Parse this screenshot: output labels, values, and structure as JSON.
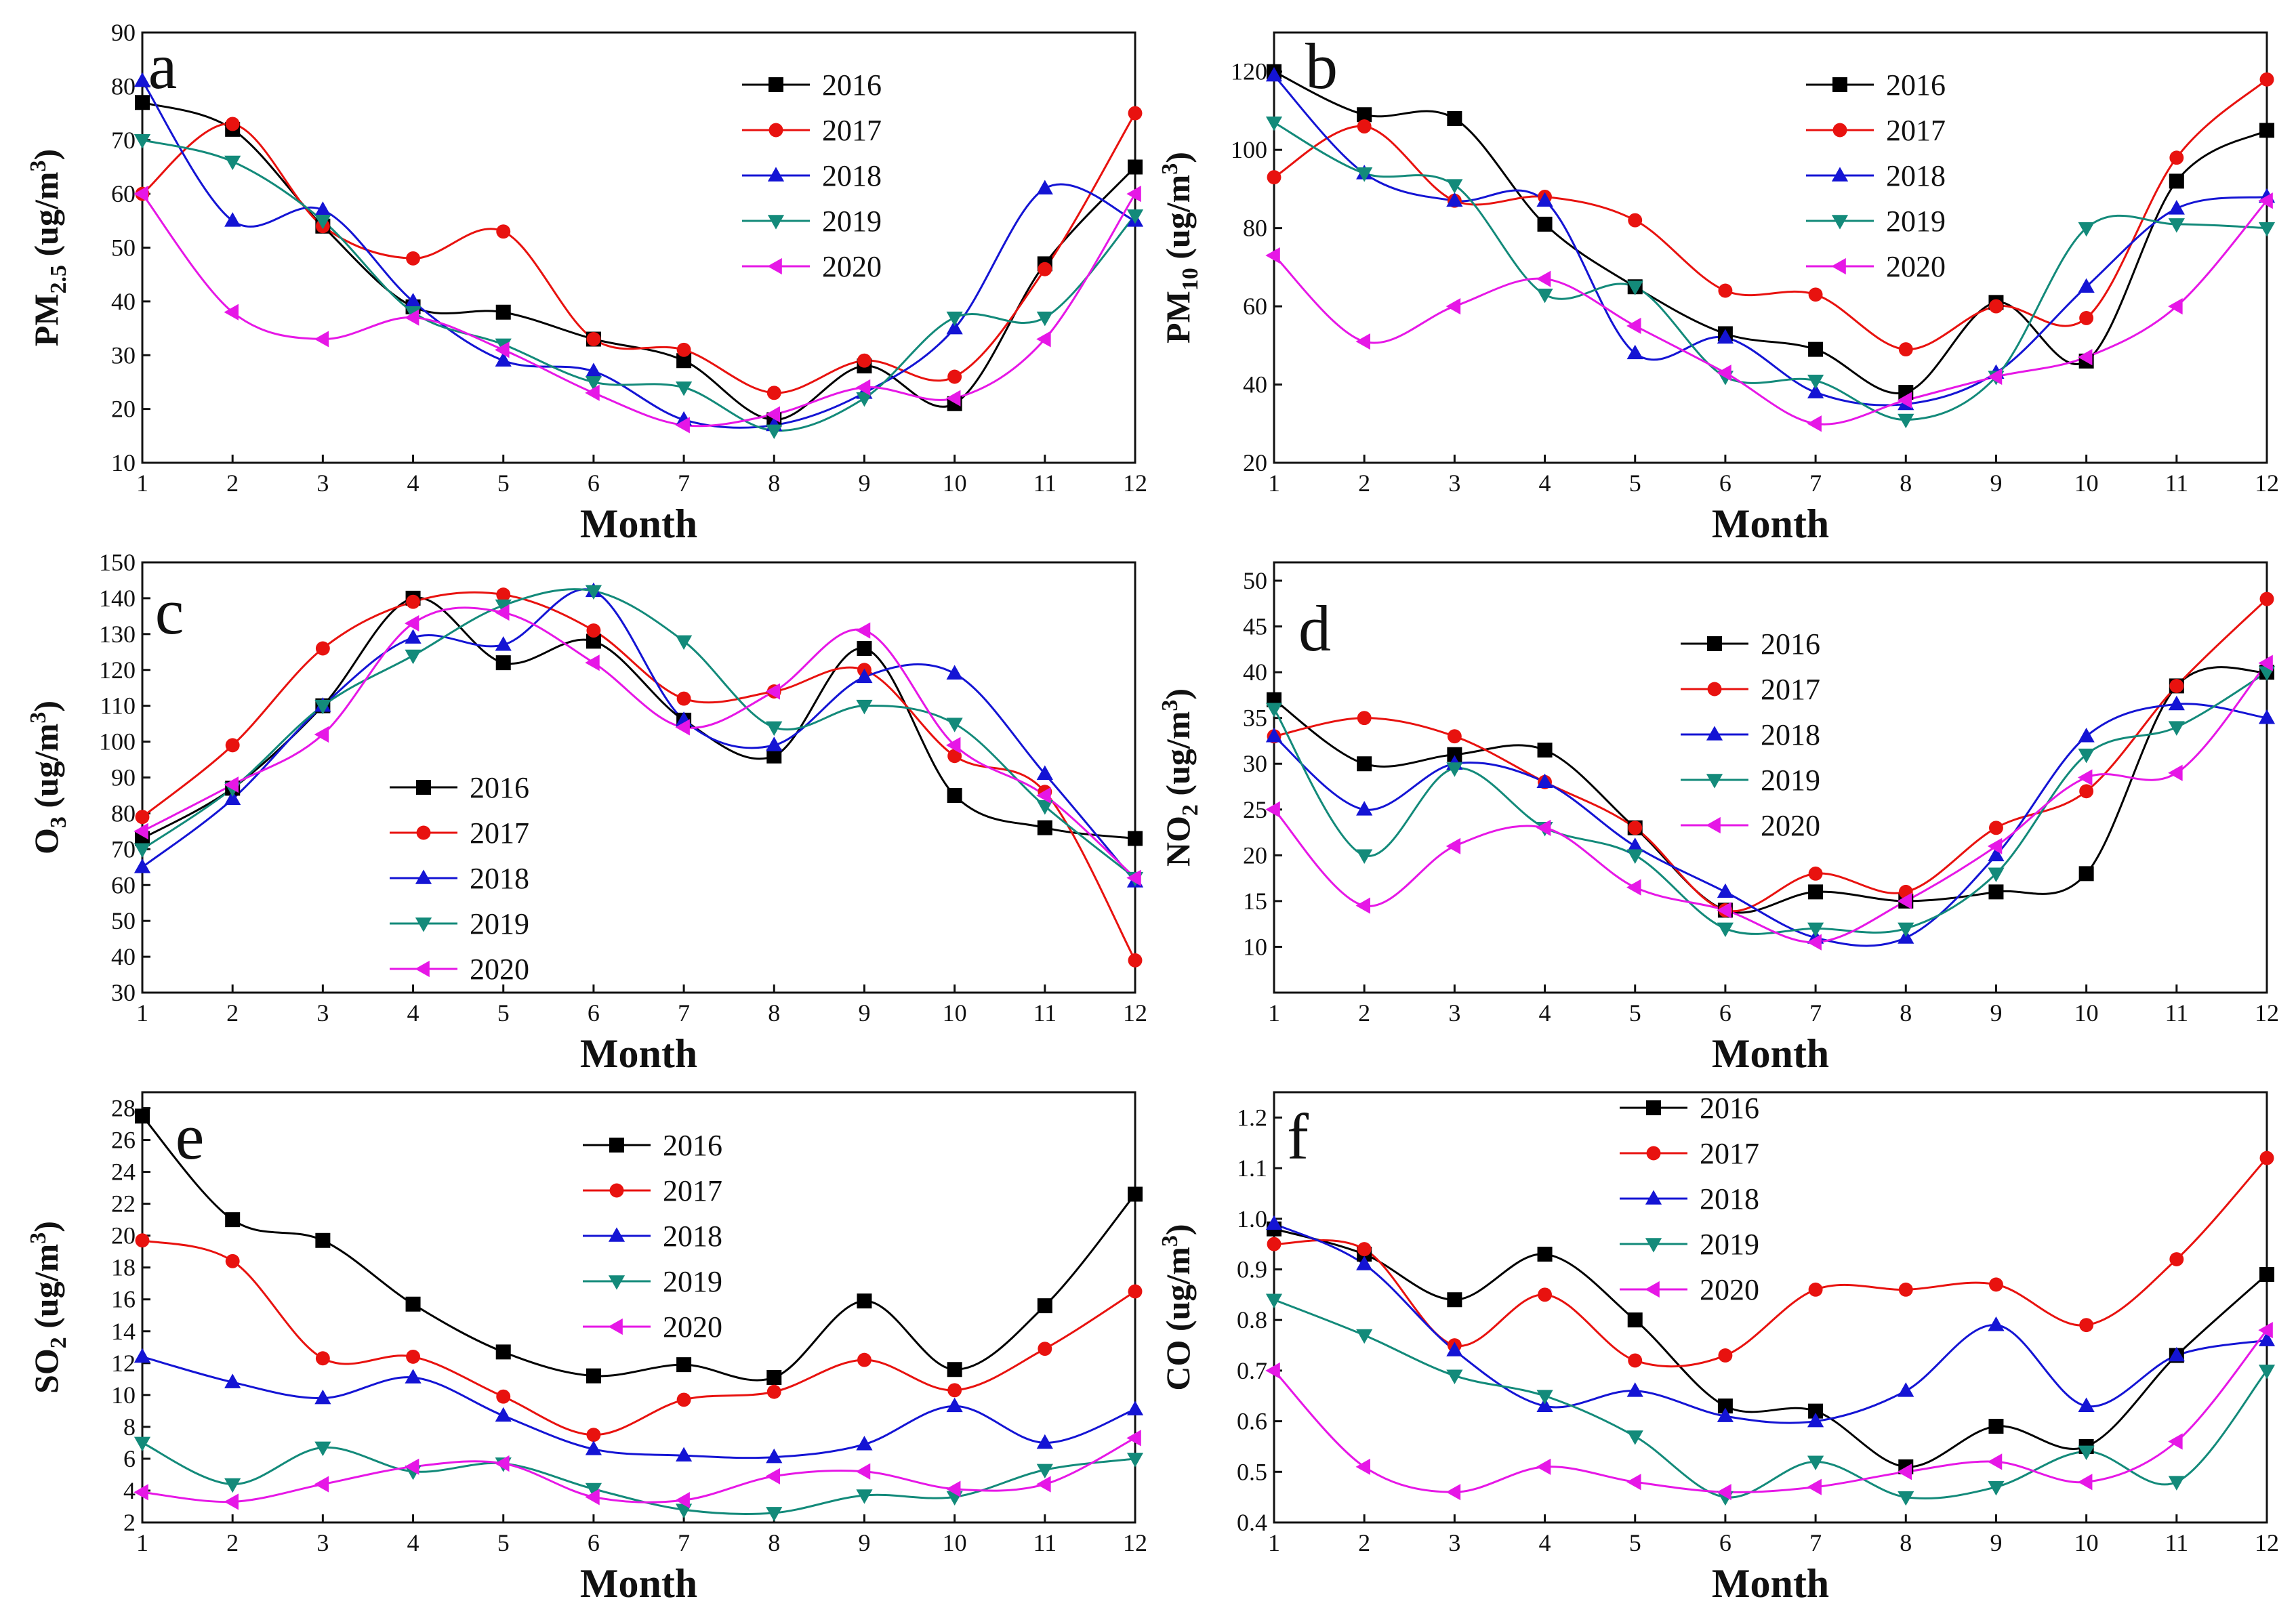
{
  "figure": {
    "years": [
      "2016",
      "2017",
      "2018",
      "2019",
      "2020"
    ],
    "colors": {
      "2016": "#000000",
      "2017": "#e8120f",
      "2018": "#1414d4",
      "2019": "#138a7a",
      "2020": "#e617e6"
    },
    "markers": {
      "2016": "square",
      "2017": "circle",
      "2018": "triangle-up",
      "2019": "triangle-down",
      "2020": "triangle-left"
    }
  },
  "chart_data": [
    {
      "panel": "a",
      "type": "line",
      "xlabel": "Month",
      "ylabel_main": "PM",
      "ylabel_sub": "2.5",
      "ylabel_unit": " (ug/m",
      "ylabel_unit_sup": "3",
      "ylabel_close": ")",
      "x": [
        1,
        2,
        3,
        4,
        5,
        6,
        7,
        8,
        9,
        10,
        11,
        12
      ],
      "ylim": [
        10,
        90
      ],
      "yticks": [
        10,
        20,
        30,
        40,
        50,
        60,
        70,
        80,
        90
      ],
      "legend": "top-right",
      "series": [
        {
          "name": "2016",
          "values": [
            77,
            72,
            54,
            39,
            38,
            33,
            29,
            18,
            28,
            21,
            47,
            65
          ]
        },
        {
          "name": "2017",
          "values": [
            60,
            73,
            54,
            48,
            53,
            33,
            31,
            23,
            29,
            26,
            46,
            75
          ]
        },
        {
          "name": "2018",
          "values": [
            81,
            55,
            57,
            40,
            29,
            27,
            18,
            17,
            23,
            35,
            61,
            55
          ]
        },
        {
          "name": "2019",
          "values": [
            70,
            66,
            55,
            38,
            32,
            25,
            24,
            16,
            22,
            37,
            37,
            56
          ]
        },
        {
          "name": "2020",
          "values": [
            60,
            38,
            33,
            37,
            31,
            23,
            17,
            19,
            24,
            22,
            33,
            60
          ]
        }
      ]
    },
    {
      "panel": "b",
      "type": "line",
      "xlabel": "Month",
      "ylabel_main": "PM",
      "ylabel_sub": "10",
      "ylabel_unit": " (ug/m",
      "ylabel_unit_sup": "3",
      "ylabel_close": ")",
      "x": [
        1,
        2,
        3,
        4,
        5,
        6,
        7,
        8,
        9,
        10,
        11,
        12
      ],
      "ylim": [
        20,
        130
      ],
      "yticks": [
        20,
        40,
        60,
        80,
        100,
        120
      ],
      "legend": "top-right",
      "series": [
        {
          "name": "2016",
          "values": [
            120,
            109,
            108,
            81,
            65,
            53,
            49,
            38,
            61,
            46,
            92,
            105
          ]
        },
        {
          "name": "2017",
          "values": [
            93,
            106,
            87,
            88,
            82,
            64,
            63,
            49,
            60,
            57,
            98,
            118
          ]
        },
        {
          "name": "2018",
          "values": [
            119,
            94,
            87,
            87,
            48,
            52,
            38,
            35,
            43,
            65,
            85,
            88
          ]
        },
        {
          "name": "2019",
          "values": [
            107,
            94,
            91,
            63,
            65,
            42,
            41,
            31,
            42,
            80,
            81,
            80
          ]
        },
        {
          "name": "2020",
          "values": [
            73,
            51,
            60,
            67,
            55,
            43,
            30,
            36,
            42,
            47,
            60,
            87
          ]
        }
      ]
    },
    {
      "panel": "c",
      "type": "line",
      "xlabel": "Month",
      "ylabel_main": "O",
      "ylabel_sub": "3",
      "ylabel_unit": " (ug/m",
      "ylabel_unit_sup": "3",
      "ylabel_close": ")",
      "x": [
        1,
        2,
        3,
        4,
        5,
        6,
        7,
        8,
        9,
        10,
        11,
        12
      ],
      "ylim": [
        30,
        150
      ],
      "yticks": [
        30,
        40,
        50,
        60,
        70,
        80,
        90,
        100,
        110,
        120,
        130,
        140,
        150
      ],
      "legend": "lower-left",
      "series": [
        {
          "name": "2016",
          "values": [
            73,
            87,
            110,
            140,
            122,
            128,
            106,
            96,
            126,
            85,
            76,
            73
          ]
        },
        {
          "name": "2017",
          "values": [
            79,
            99,
            126,
            139,
            141,
            131,
            112,
            114,
            120,
            96,
            86,
            39
          ]
        },
        {
          "name": "2018",
          "values": [
            65,
            84,
            110,
            129,
            127,
            142,
            106,
            99,
            118,
            119,
            91,
            61
          ]
        },
        {
          "name": "2019",
          "values": [
            70,
            87,
            110,
            124,
            138,
            142,
            128,
            104,
            110,
            105,
            82,
            62
          ]
        },
        {
          "name": "2020",
          "values": [
            75,
            88,
            102,
            133,
            136,
            122,
            104,
            114,
            131,
            99,
            85,
            62
          ]
        }
      ]
    },
    {
      "panel": "d",
      "type": "line",
      "xlabel": "Month",
      "ylabel_main": "NO",
      "ylabel_sub": "2",
      "ylabel_unit": " (ug/m",
      "ylabel_unit_sup": "3",
      "ylabel_close": ")",
      "x": [
        1,
        2,
        3,
        4,
        5,
        6,
        7,
        8,
        9,
        10,
        11,
        12
      ],
      "ylim": [
        5,
        52
      ],
      "yticks": [
        10,
        15,
        20,
        25,
        30,
        35,
        40,
        45,
        50
      ],
      "legend": "top-center",
      "series": [
        {
          "name": "2016",
          "values": [
            37,
            30,
            31,
            31.5,
            23,
            14,
            16,
            15,
            16,
            18,
            38.5,
            40
          ]
        },
        {
          "name": "2017",
          "values": [
            33,
            35,
            33,
            28,
            23,
            14,
            18,
            16,
            23,
            27,
            38.5,
            48
          ]
        },
        {
          "name": "2018",
          "values": [
            33,
            25,
            30,
            28,
            21,
            16,
            11,
            11,
            20,
            33,
            36.5,
            35
          ]
        },
        {
          "name": "2019",
          "values": [
            36,
            20,
            29.5,
            23,
            20,
            12,
            12,
            12,
            18,
            31,
            34,
            40
          ]
        },
        {
          "name": "2020",
          "values": [
            25,
            14.5,
            21,
            23,
            16.5,
            14,
            10.5,
            15,
            21,
            28.5,
            29,
            41
          ]
        }
      ]
    },
    {
      "panel": "e",
      "type": "line",
      "xlabel": "Month",
      "ylabel_main": "SO",
      "ylabel_sub": "2",
      "ylabel_unit": " (ug/m",
      "ylabel_unit_sup": "3",
      "ylabel_close": ")",
      "x": [
        1,
        2,
        3,
        4,
        5,
        6,
        7,
        8,
        9,
        10,
        11,
        12
      ],
      "ylim": [
        2,
        29
      ],
      "yticks": [
        2,
        4,
        6,
        8,
        10,
        12,
        14,
        16,
        18,
        20,
        22,
        24,
        26,
        28
      ],
      "legend": "top-center",
      "series": [
        {
          "name": "2016",
          "values": [
            27.5,
            21,
            19.7,
            15.7,
            12.7,
            11.2,
            11.9,
            11.1,
            15.9,
            11.6,
            15.6,
            22.6
          ]
        },
        {
          "name": "2017",
          "values": [
            19.7,
            18.4,
            12.3,
            12.4,
            9.9,
            7.5,
            9.7,
            10.2,
            12.2,
            10.3,
            12.9,
            16.5
          ]
        },
        {
          "name": "2018",
          "values": [
            12.4,
            10.8,
            9.8,
            11.1,
            8.7,
            6.6,
            6.2,
            6.1,
            6.9,
            9.3,
            7,
            9.1
          ]
        },
        {
          "name": "2019",
          "values": [
            7,
            4.4,
            6.7,
            5.2,
            5.7,
            4.1,
            2.8,
            2.6,
            3.7,
            3.6,
            5.3,
            6
          ]
        },
        {
          "name": "2020",
          "values": [
            3.9,
            3.3,
            4.4,
            5.5,
            5.7,
            3.6,
            3.4,
            4.9,
            5.2,
            4.1,
            4.4,
            7.3
          ]
        }
      ]
    },
    {
      "panel": "f",
      "type": "line",
      "xlabel": "Month",
      "ylabel_main": "CO",
      "ylabel_sub": "",
      "ylabel_unit": " (ug/m",
      "ylabel_unit_sup": "3",
      "ylabel_close": ")",
      "x": [
        1,
        2,
        3,
        4,
        5,
        6,
        7,
        8,
        9,
        10,
        11,
        12
      ],
      "ylim": [
        0.4,
        1.25
      ],
      "yticks": [
        0.4,
        0.5,
        0.6,
        0.7,
        0.8,
        0.9,
        1.0,
        1.1,
        1.2
      ],
      "ytick_labels": [
        "0.4",
        "0.5",
        "0.6",
        "0.7",
        "0.8",
        "0.9",
        "1.0",
        "1.1",
        "1.2"
      ],
      "legend": "top-center",
      "series": [
        {
          "name": "2016",
          "values": [
            0.98,
            0.93,
            0.84,
            0.93,
            0.8,
            0.63,
            0.62,
            0.51,
            0.59,
            0.55,
            0.73,
            0.89
          ]
        },
        {
          "name": "2017",
          "values": [
            0.95,
            0.94,
            0.75,
            0.85,
            0.72,
            0.73,
            0.86,
            0.86,
            0.87,
            0.79,
            0.92,
            1.12
          ]
        },
        {
          "name": "2018",
          "values": [
            0.99,
            0.91,
            0.74,
            0.63,
            0.66,
            0.61,
            0.6,
            0.66,
            0.79,
            0.63,
            0.73,
            0.76
          ]
        },
        {
          "name": "2019",
          "values": [
            0.84,
            0.77,
            0.69,
            0.65,
            0.57,
            0.45,
            0.52,
            0.45,
            0.47,
            0.54,
            0.48,
            0.7
          ]
        },
        {
          "name": "2020",
          "values": [
            0.7,
            0.51,
            0.46,
            0.51,
            0.48,
            0.46,
            0.47,
            0.5,
            0.52,
            0.48,
            0.56,
            0.78
          ]
        }
      ]
    }
  ]
}
